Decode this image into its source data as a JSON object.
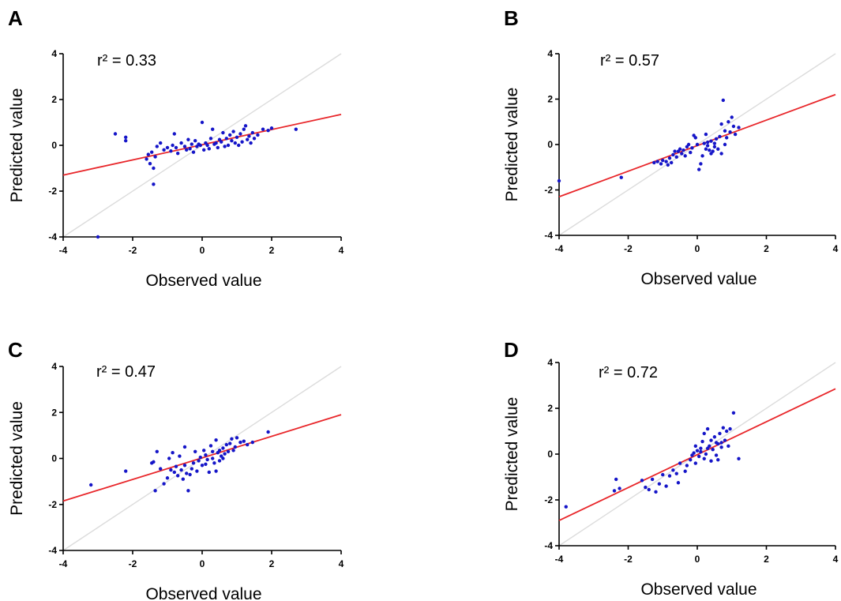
{
  "chart_data": [
    {
      "type": "scatter",
      "panel": "A",
      "annotation": "r² = 0.33",
      "xlabel": "Observed value",
      "ylabel": "Predicted value",
      "xlim": [
        -4,
        4
      ],
      "ylim": [
        -4,
        4
      ],
      "xticks": [
        -4,
        -2,
        0,
        2,
        4
      ],
      "yticks": [
        -4,
        -2,
        0,
        2,
        4
      ],
      "identity_line": true,
      "fit_line": {
        "x": [
          -4,
          4
        ],
        "y": [
          -1.3,
          1.35
        ],
        "color": "#e8262a"
      },
      "point_color": "#1515c8",
      "points": [
        [
          -3.0,
          -4.0
        ],
        [
          -2.5,
          0.5
        ],
        [
          -2.2,
          0.35
        ],
        [
          -2.2,
          0.2
        ],
        [
          -1.6,
          -0.6
        ],
        [
          -1.55,
          -0.4
        ],
        [
          -1.5,
          -0.8
        ],
        [
          -1.45,
          -0.3
        ],
        [
          -1.4,
          -1.0
        ],
        [
          -1.4,
          -1.7
        ],
        [
          -1.35,
          -0.5
        ],
        [
          -1.3,
          -0.05
        ],
        [
          -1.2,
          0.1
        ],
        [
          -1.1,
          -0.2
        ],
        [
          -1.0,
          -0.1
        ],
        [
          -0.9,
          -0.25
        ],
        [
          -0.85,
          0.0
        ],
        [
          -0.8,
          0.5
        ],
        [
          -0.75,
          -0.1
        ],
        [
          -0.7,
          -0.35
        ],
        [
          -0.6,
          0.1
        ],
        [
          -0.5,
          -0.05
        ],
        [
          -0.45,
          -0.2
        ],
        [
          -0.4,
          0.25
        ],
        [
          -0.35,
          -0.15
        ],
        [
          -0.3,
          0.05
        ],
        [
          -0.25,
          -0.3
        ],
        [
          -0.2,
          0.2
        ],
        [
          -0.15,
          -0.05
        ],
        [
          -0.1,
          0.05
        ],
        [
          -0.05,
          0.0
        ],
        [
          0.0,
          1.0
        ],
        [
          0.05,
          -0.2
        ],
        [
          0.1,
          0.1
        ],
        [
          0.15,
          0.0
        ],
        [
          0.2,
          -0.15
        ],
        [
          0.25,
          0.3
        ],
        [
          0.3,
          0.7
        ],
        [
          0.35,
          0.05
        ],
        [
          0.4,
          0.1
        ],
        [
          0.45,
          -0.1
        ],
        [
          0.5,
          0.25
        ],
        [
          0.55,
          0.15
        ],
        [
          0.6,
          0.55
        ],
        [
          0.65,
          -0.05
        ],
        [
          0.7,
          0.3
        ],
        [
          0.75,
          0.0
        ],
        [
          0.8,
          0.45
        ],
        [
          0.85,
          0.2
        ],
        [
          0.9,
          0.6
        ],
        [
          0.95,
          0.1
        ],
        [
          1.0,
          0.35
        ],
        [
          1.05,
          0.0
        ],
        [
          1.1,
          0.5
        ],
        [
          1.15,
          0.15
        ],
        [
          1.2,
          0.7
        ],
        [
          1.25,
          0.85
        ],
        [
          1.3,
          0.25
        ],
        [
          1.35,
          0.4
        ],
        [
          1.4,
          0.1
        ],
        [
          1.45,
          0.55
        ],
        [
          1.5,
          0.3
        ],
        [
          1.6,
          0.45
        ],
        [
          1.75,
          0.7
        ],
        [
          1.9,
          0.65
        ],
        [
          2.0,
          0.75
        ],
        [
          2.7,
          0.7
        ]
      ]
    },
    {
      "type": "scatter",
      "panel": "B",
      "annotation": "r² = 0.57",
      "xlabel": "Observed value",
      "ylabel": "Predicted value",
      "xlim": [
        -4,
        4
      ],
      "ylim": [
        -4,
        4
      ],
      "xticks": [
        -4,
        -2,
        0,
        2,
        4
      ],
      "yticks": [
        -4,
        -2,
        0,
        2,
        4
      ],
      "identity_line": true,
      "fit_line": {
        "x": [
          -4,
          4
        ],
        "y": [
          -2.3,
          2.2
        ],
        "color": "#e8262a"
      },
      "point_color": "#1515c8",
      "points": [
        [
          -4.0,
          -1.6
        ],
        [
          -2.2,
          -1.45
        ],
        [
          -1.25,
          -0.8
        ],
        [
          -1.15,
          -0.75
        ],
        [
          -1.05,
          -0.85
        ],
        [
          -1.0,
          -0.7
        ],
        [
          -0.9,
          -0.75
        ],
        [
          -0.85,
          -0.9
        ],
        [
          -0.8,
          -0.6
        ],
        [
          -0.75,
          -0.8
        ],
        [
          -0.7,
          -0.45
        ],
        [
          -0.65,
          -0.3
        ],
        [
          -0.6,
          -0.55
        ],
        [
          -0.55,
          -0.3
        ],
        [
          -0.5,
          -0.2
        ],
        [
          -0.45,
          -0.4
        ],
        [
          -0.4,
          -0.25
        ],
        [
          -0.35,
          -0.5
        ],
        [
          -0.3,
          -0.1
        ],
        [
          -0.25,
          0.0
        ],
        [
          -0.2,
          -0.35
        ],
        [
          -0.15,
          -0.15
        ],
        [
          -0.1,
          0.4
        ],
        [
          -0.05,
          0.3
        ],
        [
          0.0,
          0.0
        ],
        [
          0.05,
          -1.1
        ],
        [
          0.1,
          -0.85
        ],
        [
          0.15,
          -0.5
        ],
        [
          0.2,
          0.05
        ],
        [
          0.25,
          -0.2
        ],
        [
          0.3,
          0.1
        ],
        [
          0.35,
          -0.25
        ],
        [
          0.4,
          0.15
        ],
        [
          0.45,
          -0.3
        ],
        [
          0.5,
          0.05
        ],
        [
          0.55,
          0.25
        ],
        [
          0.6,
          -0.2
        ],
        [
          0.65,
          0.35
        ],
        [
          0.7,
          0.9
        ],
        [
          0.75,
          1.95
        ],
        [
          0.8,
          0.6
        ],
        [
          0.85,
          0.3
        ],
        [
          0.9,
          1.0
        ],
        [
          0.95,
          0.55
        ],
        [
          1.0,
          1.2
        ],
        [
          1.05,
          0.8
        ],
        [
          1.1,
          0.45
        ],
        [
          0.7,
          -0.4
        ],
        [
          0.8,
          0.0
        ],
        [
          0.4,
          -0.4
        ],
        [
          0.25,
          0.45
        ],
        [
          0.5,
          -0.1
        ],
        [
          1.2,
          0.75
        ],
        [
          0.3,
          -0.05
        ]
      ]
    },
    {
      "type": "scatter",
      "panel": "C",
      "annotation": "r² = 0.47",
      "xlabel": "Observed value",
      "ylabel": "Predicted value",
      "xlim": [
        -4,
        4
      ],
      "ylim": [
        -4,
        4
      ],
      "xticks": [
        -4,
        -2,
        0,
        2,
        4
      ],
      "yticks": [
        -4,
        -2,
        0,
        2,
        4
      ],
      "identity_line": true,
      "fit_line": {
        "x": [
          -4,
          4
        ],
        "y": [
          -1.85,
          1.9
        ],
        "color": "#e8262a"
      },
      "point_color": "#1515c8",
      "points": [
        [
          -3.2,
          -1.15
        ],
        [
          -2.2,
          -0.55
        ],
        [
          -1.45,
          -0.2
        ],
        [
          -1.4,
          -0.15
        ],
        [
          -1.35,
          -1.4
        ],
        [
          -1.3,
          0.3
        ],
        [
          -1.2,
          -0.45
        ],
        [
          -1.1,
          -1.1
        ],
        [
          -1.0,
          -0.85
        ],
        [
          -0.95,
          0.0
        ],
        [
          -0.9,
          -0.5
        ],
        [
          -0.85,
          0.25
        ],
        [
          -0.8,
          -0.6
        ],
        [
          -0.75,
          -0.35
        ],
        [
          -0.7,
          -0.75
        ],
        [
          -0.65,
          0.1
        ],
        [
          -0.6,
          -0.5
        ],
        [
          -0.55,
          -0.9
        ],
        [
          -0.5,
          -0.3
        ],
        [
          -0.45,
          -0.65
        ],
        [
          -0.4,
          -1.4
        ],
        [
          -0.35,
          -0.7
        ],
        [
          -0.3,
          -0.45
        ],
        [
          -0.25,
          -0.2
        ],
        [
          -0.2,
          0.3
        ],
        [
          -0.15,
          -0.55
        ],
        [
          -0.1,
          -0.1
        ],
        [
          -0.05,
          0.05
        ],
        [
          0.0,
          -0.3
        ],
        [
          0.05,
          0.35
        ],
        [
          0.1,
          0.15
        ],
        [
          0.15,
          -0.05
        ],
        [
          0.2,
          -0.6
        ],
        [
          0.25,
          0.55
        ],
        [
          0.3,
          0.0
        ],
        [
          0.35,
          -0.2
        ],
        [
          0.4,
          0.8
        ],
        [
          0.45,
          0.25
        ],
        [
          0.5,
          -0.1
        ],
        [
          0.55,
          0.1
        ],
        [
          0.6,
          0.45
        ],
        [
          0.65,
          0.2
        ],
        [
          0.7,
          0.6
        ],
        [
          0.75,
          0.3
        ],
        [
          0.8,
          0.65
        ],
        [
          0.85,
          0.85
        ],
        [
          0.9,
          0.35
        ],
        [
          0.95,
          0.5
        ],
        [
          1.0,
          0.9
        ],
        [
          1.1,
          0.7
        ],
        [
          1.2,
          0.75
        ],
        [
          1.3,
          0.6
        ],
        [
          1.45,
          0.7
        ],
        [
          1.9,
          1.15
        ],
        [
          0.6,
          0.0
        ],
        [
          0.3,
          0.3
        ],
        [
          -0.5,
          0.5
        ],
        [
          0.4,
          -0.55
        ],
        [
          0.1,
          -0.25
        ],
        [
          0.5,
          0.35
        ]
      ]
    },
    {
      "type": "scatter",
      "panel": "D",
      "annotation": "r² = 0.72",
      "xlabel": "Observed value",
      "ylabel": "Predicted value",
      "xlim": [
        -4,
        4
      ],
      "ylim": [
        -4,
        4
      ],
      "xticks": [
        -4,
        -2,
        0,
        2,
        4
      ],
      "yticks": [
        -4,
        -2,
        0,
        2,
        4
      ],
      "identity_line": true,
      "fit_line": {
        "x": [
          -4,
          4
        ],
        "y": [
          -2.9,
          2.85
        ],
        "color": "#e8262a"
      },
      "point_color": "#1515c8",
      "points": [
        [
          -3.8,
          -2.3
        ],
        [
          -2.4,
          -1.6
        ],
        [
          -2.35,
          -1.1
        ],
        [
          -2.25,
          -1.5
        ],
        [
          -1.6,
          -1.15
        ],
        [
          -1.5,
          -1.45
        ],
        [
          -1.4,
          -1.55
        ],
        [
          -1.3,
          -1.1
        ],
        [
          -1.2,
          -1.65
        ],
        [
          -1.1,
          -1.3
        ],
        [
          -1.0,
          -0.9
        ],
        [
          -0.9,
          -1.4
        ],
        [
          -0.8,
          -0.95
        ],
        [
          -0.7,
          -0.7
        ],
        [
          -0.6,
          -0.85
        ],
        [
          -0.55,
          -1.25
        ],
        [
          -0.5,
          -0.4
        ],
        [
          -0.35,
          -0.75
        ],
        [
          -0.3,
          -0.5
        ],
        [
          -0.2,
          -0.25
        ],
        [
          -0.15,
          -0.05
        ],
        [
          -0.1,
          0.05
        ],
        [
          -0.05,
          -0.4
        ],
        [
          0.0,
          0.15
        ],
        [
          0.05,
          -0.1
        ],
        [
          0.1,
          0.25
        ],
        [
          0.15,
          0.55
        ],
        [
          0.2,
          -0.2
        ],
        [
          0.25,
          0.0
        ],
        [
          0.3,
          1.1
        ],
        [
          0.35,
          0.35
        ],
        [
          0.4,
          0.6
        ],
        [
          0.45,
          0.2
        ],
        [
          0.5,
          0.75
        ],
        [
          0.55,
          -0.05
        ],
        [
          0.6,
          0.45
        ],
        [
          0.65,
          0.9
        ],
        [
          0.7,
          0.3
        ],
        [
          0.75,
          1.15
        ],
        [
          0.8,
          0.6
        ],
        [
          0.85,
          1.0
        ],
        [
          0.9,
          0.35
        ],
        [
          0.95,
          1.1
        ],
        [
          1.05,
          1.8
        ],
        [
          1.2,
          -0.2
        ],
        [
          0.2,
          0.9
        ],
        [
          0.4,
          -0.3
        ],
        [
          0.55,
          0.5
        ],
        [
          0.1,
          0.1
        ],
        [
          0.3,
          0.25
        ],
        [
          0.7,
          0.5
        ],
        [
          -0.05,
          0.35
        ],
        [
          0.6,
          -0.25
        ]
      ]
    }
  ]
}
